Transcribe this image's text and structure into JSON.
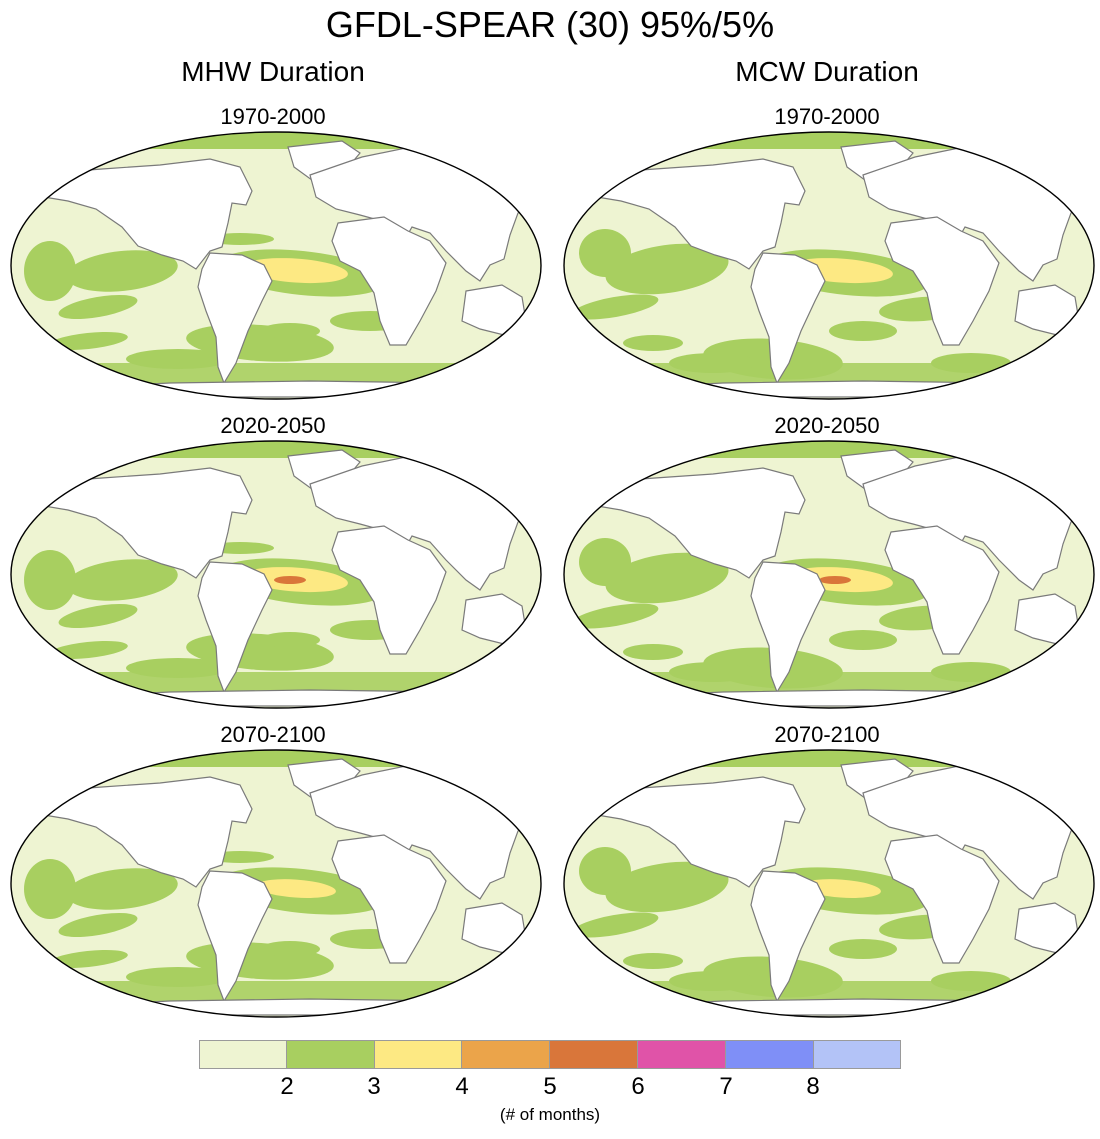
{
  "title": "GFDL-SPEAR (30) 95%/5%",
  "columns": [
    {
      "label": "MHW Duration",
      "panels": [
        "1970-2000",
        "2020-2050",
        "2070-2100"
      ]
    },
    {
      "label": "MCW Duration",
      "panels": [
        "1970-2000",
        "2020-2050",
        "2070-2100"
      ]
    }
  ],
  "colorbar": {
    "colors": [
      "#eef4d2",
      "#a8cf60",
      "#fde983",
      "#eba44a",
      "#d9763a",
      "#e053a8",
      "#7f8ff7",
      "#b3c3f7"
    ],
    "ticks": [
      "2",
      "3",
      "4",
      "5",
      "6",
      "7",
      "8"
    ],
    "unit_label": "(# of months)"
  }
}
